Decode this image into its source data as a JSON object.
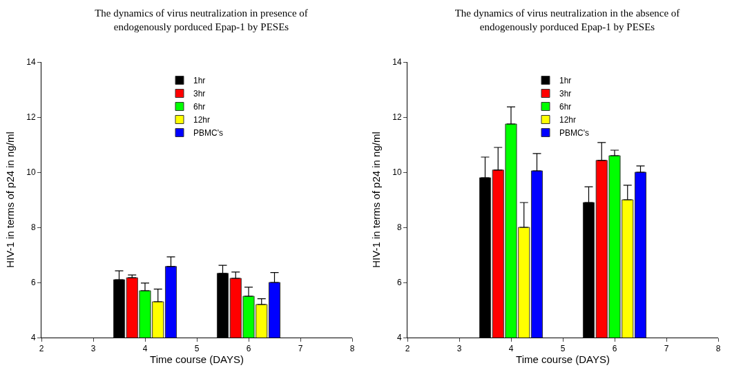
{
  "chart_data": [
    {
      "type": "bar",
      "title": "The dynamics of virus neutralization in presence of\nendogenously porduced Epap-1 by PESEs",
      "xlabel": "Time course (DAYS)",
      "ylabel": "HIV-1 in terms of p24 in ng/ml",
      "series": [
        {
          "name": "1hr",
          "color": "#000000",
          "x": [
            3.5,
            5.5
          ],
          "values": [
            6.1,
            6.33
          ],
          "errors": [
            [
              6.1,
              6.42
            ],
            [
              6.33,
              6.62
            ]
          ]
        },
        {
          "name": "3hr",
          "color": "#ff0000",
          "x": [
            3.75,
            5.75
          ],
          "values": [
            6.17,
            6.15
          ],
          "errors": [
            [
              6.17,
              6.27
            ],
            [
              6.15,
              6.38
            ]
          ]
        },
        {
          "name": "6hr",
          "color": "#00ff00",
          "x": [
            4.0,
            6.0
          ],
          "values": [
            5.7,
            5.5
          ],
          "errors": [
            [
              5.7,
              5.98
            ],
            [
              5.5,
              5.83
            ]
          ]
        },
        {
          "name": "12hr",
          "color": "#ffff00",
          "x": [
            4.25,
            6.25
          ],
          "values": [
            5.3,
            5.2
          ],
          "errors": [
            [
              5.3,
              5.76
            ],
            [
              5.2,
              5.41
            ]
          ]
        },
        {
          "name": "PBMC's",
          "color": "#0000ff",
          "x": [
            4.5,
            6.5
          ],
          "values": [
            6.58,
            6.0
          ],
          "errors": [
            [
              6.58,
              6.93
            ],
            [
              6.0,
              6.36
            ]
          ]
        }
      ],
      "xlim": [
        2,
        8
      ],
      "xticks": [
        2,
        3,
        4,
        5,
        6,
        7,
        8
      ],
      "ylim": [
        4,
        14
      ],
      "yticks": [
        4,
        6,
        8,
        10,
        12,
        14
      ],
      "grid": false,
      "legend": "top"
    },
    {
      "type": "bar",
      "title": "The dynamics of virus neutralization in the absence of\nendogenously porduced Epap-1 by PESEs",
      "xlabel": "Time course (DAYS)",
      "ylabel": "HIV-1 in terms of p24 in ng/ml",
      "series": [
        {
          "name": "1hr",
          "color": "#000000",
          "x": [
            3.5,
            5.5
          ],
          "values": [
            9.8,
            8.9
          ],
          "errors": [
            [
              9.8,
              10.55
            ],
            [
              8.9,
              9.47
            ]
          ]
        },
        {
          "name": "3hr",
          "color": "#ff0000",
          "x": [
            3.75,
            5.75
          ],
          "values": [
            10.08,
            10.43
          ],
          "errors": [
            [
              10.08,
              10.9
            ],
            [
              10.43,
              11.08
            ]
          ]
        },
        {
          "name": "6hr",
          "color": "#00ff00",
          "x": [
            4.0,
            6.0
          ],
          "values": [
            11.75,
            10.6
          ],
          "errors": [
            [
              11.75,
              12.37
            ],
            [
              10.6,
              10.8
            ]
          ]
        },
        {
          "name": "12hr",
          "color": "#ffff00",
          "x": [
            4.25,
            6.25
          ],
          "values": [
            8.0,
            9.0
          ],
          "errors": [
            [
              8.0,
              8.9
            ],
            [
              9.0,
              9.53
            ]
          ]
        },
        {
          "name": "PBMC's",
          "color": "#0000ff",
          "x": [
            4.5,
            6.5
          ],
          "values": [
            10.05,
            10.0
          ],
          "errors": [
            [
              10.05,
              10.68
            ],
            [
              10.0,
              10.23
            ]
          ]
        }
      ],
      "xlim": [
        2,
        8
      ],
      "xticks": [
        2,
        3,
        4,
        5,
        6,
        7,
        8
      ],
      "ylim": [
        4,
        14
      ],
      "yticks": [
        4,
        6,
        8,
        10,
        12,
        14
      ],
      "grid": false,
      "legend": "top"
    }
  ]
}
